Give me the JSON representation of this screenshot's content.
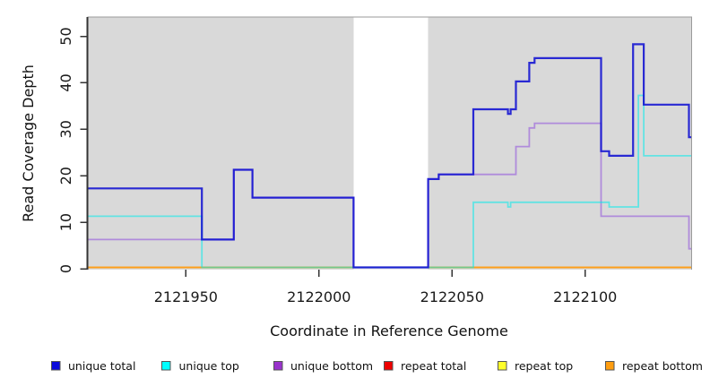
{
  "chart_data": {
    "type": "line",
    "step": true,
    "title": "",
    "xlabel": "Coordinate in Reference Genome",
    "ylabel": "Read Coverage Depth",
    "xlim": [
      2121913,
      2122140
    ],
    "ylim": [
      0,
      54
    ],
    "x_ticks": [
      2121950,
      2122000,
      2122050,
      2122100
    ],
    "y_ticks": [
      0,
      10,
      20,
      30,
      40,
      50
    ],
    "grid": false,
    "legend_position": "bottom",
    "colors": {
      "plot_background": "#d9d9d9",
      "gap_band": "#ffffff",
      "axis": "#333333",
      "box_border": "#9a9a9a",
      "tick_label": "#1a1a1a"
    },
    "gap_region": {
      "from": 2122013,
      "to": 2122041
    },
    "series": [
      {
        "name": "repeat total",
        "legend_label": "repeat total",
        "stroke": "#dd0000",
        "legend_fill": "#ee0000",
        "width": 1.6,
        "points": [
          [
            2121913,
            0
          ]
        ]
      },
      {
        "name": "repeat top",
        "legend_label": "repeat top",
        "stroke": "#ffff00",
        "legend_fill": "#ffff2a",
        "width": 1.6,
        "points": [
          [
            2121913,
            0
          ]
        ]
      },
      {
        "name": "repeat bottom",
        "legend_label": "repeat bottom",
        "stroke": "#ff9d1a",
        "legend_fill": "#ff9d0f",
        "width": 1.8,
        "points": [
          [
            2121913,
            0
          ]
        ]
      },
      {
        "name": "unique bottom",
        "legend_label": "unique bottom",
        "stroke": "rgba(150,90,220,0.62)",
        "legend_fill": "#9932cc",
        "width": 1.8,
        "points": [
          [
            2121913,
            6
          ],
          [
            2121968,
            21
          ],
          [
            2121975,
            15
          ],
          [
            2122013,
            0
          ],
          [
            2122041,
            19
          ],
          [
            2122045,
            20
          ],
          [
            2122074,
            26
          ],
          [
            2122079,
            30
          ],
          [
            2122081,
            31
          ],
          [
            2122106,
            11
          ],
          [
            2122139,
            4
          ]
        ]
      },
      {
        "name": "unique top",
        "legend_label": "unique top",
        "stroke": "rgba(0,235,235,0.55)",
        "legend_fill": "#00ffff",
        "width": 1.8,
        "points": [
          [
            2121913,
            11
          ],
          [
            2121956,
            0
          ],
          [
            2122058,
            14
          ],
          [
            2122071,
            13
          ],
          [
            2122072,
            14
          ],
          [
            2122109,
            13
          ],
          [
            2122120,
            37
          ],
          [
            2122122,
            24
          ]
        ]
      },
      {
        "name": "unique total",
        "legend_label": "unique total",
        "stroke": "rgba(16,16,210,0.88)",
        "legend_fill": "#0b0bdb",
        "width": 2.2,
        "points": [
          [
            2121913,
            17
          ],
          [
            2121956,
            6
          ],
          [
            2121968,
            21
          ],
          [
            2121975,
            15
          ],
          [
            2122013,
            0
          ],
          [
            2122041,
            19
          ],
          [
            2122045,
            20
          ],
          [
            2122058,
            34
          ],
          [
            2122071,
            33
          ],
          [
            2122072,
            34
          ],
          [
            2122074,
            40
          ],
          [
            2122079,
            44
          ],
          [
            2122081,
            45
          ],
          [
            2122106,
            25
          ],
          [
            2122109,
            24
          ],
          [
            2122118,
            48
          ],
          [
            2122122,
            35
          ],
          [
            2122139,
            28
          ]
        ]
      }
    ],
    "legend_order": [
      "unique total",
      "unique top",
      "unique bottom",
      "repeat total",
      "repeat top",
      "repeat bottom"
    ]
  }
}
